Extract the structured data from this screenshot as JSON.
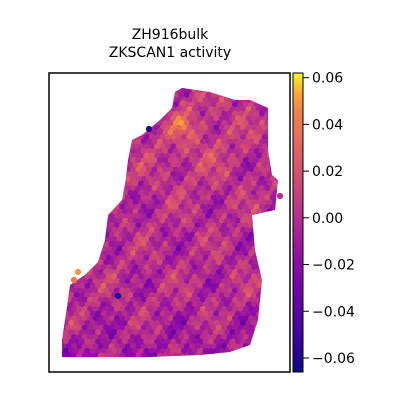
{
  "chart_data": {
    "type": "heatmap",
    "subtype": "spatial-hexbin",
    "title": "ZH916bulk\nZKSCAN1 activity",
    "title_lines": [
      "ZH916bulk",
      "ZKSCAN1 activity"
    ],
    "colormap": "plasma",
    "colorbar": {
      "range": [
        -0.066,
        0.062
      ],
      "ticks": [
        0.06,
        0.04,
        0.02,
        0.0,
        -0.02,
        -0.04,
        -0.06
      ],
      "tick_labels": [
        "0.06",
        "0.04",
        "0.02",
        "0.00",
        "−0.02",
        "−0.04",
        "−0.06"
      ],
      "placement": "right"
    },
    "axes": {
      "x_ticks": false,
      "y_ticks": false,
      "frame": true
    },
    "grid": false
  }
}
